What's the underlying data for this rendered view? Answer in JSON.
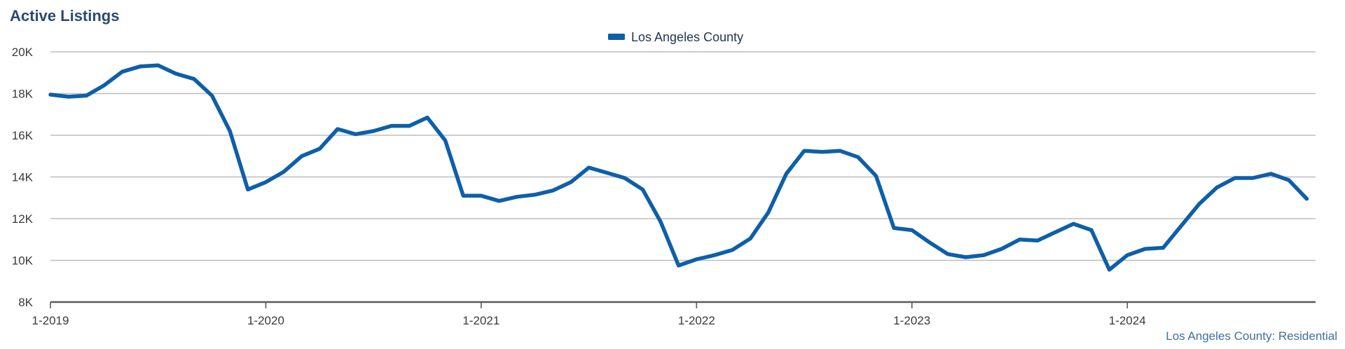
{
  "chart_data": {
    "type": "line",
    "title": "Active Listings",
    "source_note": "Los Angeles County: Residential",
    "legend_position": "top-center",
    "grid": true,
    "ylim": [
      8000,
      20000
    ],
    "y_ticks": [
      {
        "value": 8000,
        "label": "8K"
      },
      {
        "value": 10000,
        "label": "10K"
      },
      {
        "value": 12000,
        "label": "12K"
      },
      {
        "value": 14000,
        "label": "14K"
      },
      {
        "value": 16000,
        "label": "16K"
      },
      {
        "value": 18000,
        "label": "18K"
      },
      {
        "value": 20000,
        "label": "20K"
      }
    ],
    "x_ticks": [
      "1-2019",
      "1-2020",
      "1-2021",
      "1-2022",
      "1-2023",
      "1-2024"
    ],
    "x_start": "1-2019",
    "x_end": "11-2024",
    "colors": {
      "series": "#0e5fa8",
      "title": "#2b4a6f",
      "grid": "#bdbdbd",
      "axis": "#5a5a5a",
      "source": "#3e6fa3"
    },
    "series": [
      {
        "name": "Los Angeles County",
        "values": [
          17950,
          17850,
          17900,
          18400,
          19050,
          19300,
          19350,
          18950,
          18700,
          17900,
          16200,
          13400,
          13750,
          14250,
          15000,
          15350,
          16300,
          16050,
          16200,
          16450,
          16450,
          16850,
          15750,
          13100,
          13100,
          12850,
          13050,
          13150,
          13350,
          13750,
          14450,
          14200,
          13950,
          13400,
          11850,
          9750,
          10050,
          10250,
          10500,
          11050,
          12300,
          14150,
          15250,
          15200,
          15250,
          14950,
          14050,
          11550,
          11450,
          10850,
          10300,
          10150,
          10250,
          10550,
          11000,
          10950,
          11350,
          11750,
          11450,
          9550,
          10250,
          10550,
          10600,
          11650,
          12700,
          13500,
          13950,
          13950,
          14150,
          13850,
          12950
        ]
      }
    ]
  }
}
